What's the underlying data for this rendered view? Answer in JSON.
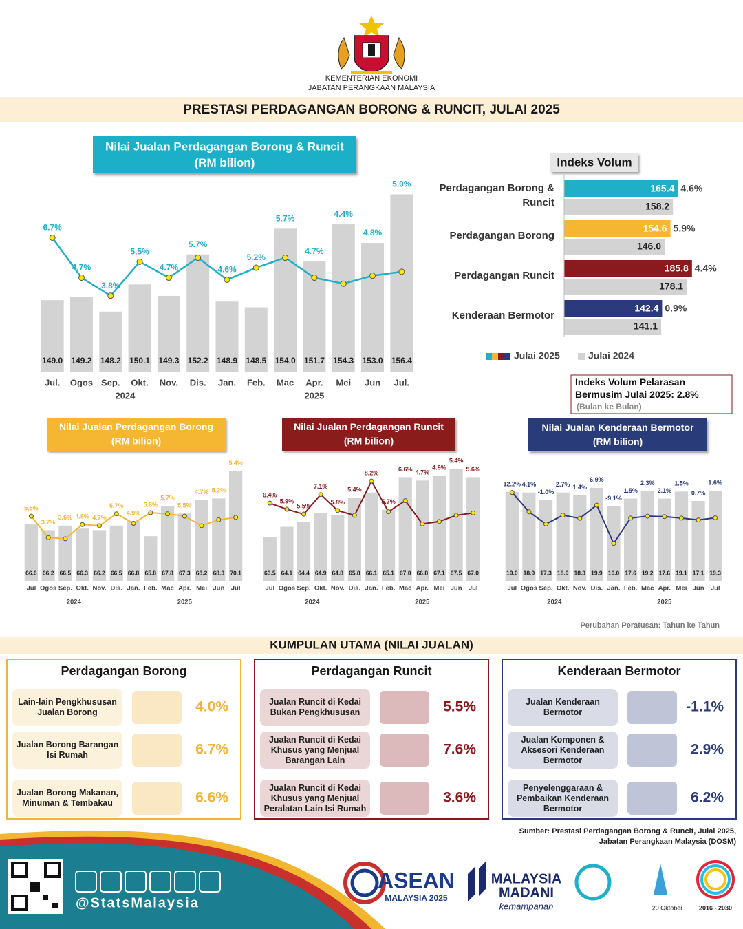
{
  "header": {
    "ministry": "KEMENTERIAN EKONOMI",
    "department": "JABATAN PERANGKAAN MALAYSIA",
    "title": "PRESTASI PERDAGANGAN BORONG & RUNCIT, JULAI 2025"
  },
  "chart_data": [
    {
      "type": "combo",
      "title": "Nilai Jualan Perdagangan Borong & Runcit",
      "subtitle": "(RM bilion)",
      "categories": [
        "Jul.",
        "Ogos",
        "Sep.",
        "Okt.",
        "Nov.",
        "Dis.",
        "Jan.",
        "Feb.",
        "Mac",
        "Apr.",
        "Mei",
        "Jun",
        "Jul."
      ],
      "x_groups": [
        "2024",
        "2025"
      ],
      "series": [
        {
          "type": "bar",
          "color": "#d3d3d3",
          "values": [
            149.0,
            149.2,
            148.2,
            150.1,
            149.3,
            152.2,
            148.9,
            148.5,
            154.0,
            151.7,
            154.3,
            153.0,
            156.4
          ],
          "value_labels": [
            "149.0",
            "149.2",
            "148.2",
            "150.1",
            "149.3",
            "152.2",
            "148.9",
            "148.5",
            "154.0",
            "151.7",
            "154.3",
            "153.0",
            "156.4"
          ]
        },
        {
          "type": "line",
          "axis": "y2",
          "color": "#1fb0c8",
          "values": [
            6.7,
            4.7,
            3.8,
            5.5,
            4.7,
            5.7,
            4.6,
            5.2,
            5.7,
            4.7,
            4.4,
            4.8,
            5.0
          ],
          "value_labels": [
            "6.7%",
            "4.7%",
            "3.8%",
            "5.5%",
            "4.7%",
            "5.7%",
            "4.6%",
            "5.2%",
            "5.7%",
            "4.7%",
            "4.4%",
            "4.8%",
            "5.0%"
          ]
        }
      ],
      "ylim": [
        144,
        157
      ],
      "y2lim": [
        0,
        9.3
      ]
    },
    {
      "type": "hbar",
      "title": "Indeks Volum",
      "categories": [
        "Perdagangan Borong & Runcit",
        "Perdagangan Borong",
        "Perdagangan Runcit",
        "Kenderaan Bermotor"
      ],
      "series": [
        {
          "name": "Julai 2025",
          "colors": [
            "#1fb0c8",
            "#f5b731",
            "#8b1a1f",
            "#2b3a7a"
          ],
          "values": [
            165.4,
            154.6,
            185.8,
            142.4
          ]
        },
        {
          "name": "Julai 2024",
          "color": "#d3d3d3",
          "values": [
            158.2,
            146.0,
            178.1,
            141.1
          ],
          "value_labels": [
            "158.2",
            "146.0",
            "178.1",
            "141.1"
          ]
        }
      ],
      "changes": [
        4.6,
        5.9,
        4.4,
        0.9
      ],
      "change_labels": [
        "4.6%",
        "5.9%",
        "4.4%",
        "0.9%"
      ],
      "xlim": [
        0,
        200
      ],
      "note": "Indeks Volum Pelarasan Bermusim Julai 2025: 2.8%",
      "note_detail": "(Bulan ke Bulan)"
    },
    {
      "type": "combo",
      "title": "Nilai Jualan Perdagangan Borong",
      "subtitle": "(RM bilion)",
      "categories": [
        "Jul",
        "Ogos",
        "Sep.",
        "Okt.",
        "Nov.",
        "Dis.",
        "Jan.",
        "Feb.",
        "Mac",
        "Apr.",
        "Mei",
        "Jun",
        "Jul"
      ],
      "x_groups": [
        "2024",
        "2025"
      ],
      "series": [
        {
          "type": "bar",
          "color": "#d3d3d3",
          "values": [
            66.6,
            66.2,
            66.5,
            66.3,
            66.2,
            66.5,
            66.8,
            65.8,
            67.8,
            67.3,
            68.2,
            68.3,
            70.1
          ],
          "value_labels": [
            "66.6",
            "66.2",
            "66.5",
            "66.3",
            "66.2",
            "66.5",
            "66.8",
            "65.8",
            "67.8",
            "67.3",
            "68.2",
            "68.3",
            "70.1"
          ]
        },
        {
          "type": "line",
          "axis": "y2",
          "color": "#f5b731",
          "values": [
            5.5,
            3.7,
            3.6,
            4.8,
            4.7,
            5.7,
            4.9,
            5.8,
            5.7,
            5.5,
            4.7,
            5.2,
            5.4
          ],
          "value_labels": [
            "5.5%",
            "3.7%",
            "3.6%",
            "4.8%",
            "4.7%",
            "5.7%",
            "4.9%",
            "5.8%",
            "5.7%",
            "5.5%",
            "4.7%",
            "5.2%",
            "5.4%"
          ]
        }
      ],
      "ylim": [
        62.8,
        70.5
      ],
      "y2lim": [
        0,
        9.8
      ]
    },
    {
      "type": "combo",
      "title": "Nilai Jualan Perdagangan Runcit",
      "subtitle": "(RM bilion)",
      "categories": [
        "Jul",
        "Ogos",
        "Sep.",
        "Okt.",
        "Nov.",
        "Dis.",
        "Jan.",
        "Feb.",
        "Mac",
        "Apr.",
        "Mei",
        "Jun",
        "Jul"
      ],
      "x_groups": [
        "2024",
        "2025"
      ],
      "series": [
        {
          "type": "bar",
          "color": "#d3d3d3",
          "values": [
            63.5,
            64.1,
            64.4,
            64.9,
            64.8,
            65.8,
            66.1,
            65.1,
            67.0,
            66.8,
            67.1,
            67.5,
            67.0
          ],
          "value_labels": [
            "63.5",
            "64.1",
            "64.4",
            "64.9",
            "64.8",
            "65.8",
            "66.1",
            "65.1",
            "67.0",
            "66.8",
            "67.1",
            "67.5",
            "67.0"
          ]
        },
        {
          "type": "line",
          "axis": "y2",
          "color": "#8b1a1f",
          "values": [
            6.4,
            5.9,
            5.5,
            7.1,
            5.8,
            5.4,
            8.2,
            5.7,
            6.6,
            4.7,
            4.9,
            5.4,
            5.6
          ],
          "value_labels": [
            "6.4%",
            "5.9%",
            "5.5%",
            "7.1%",
            "5.8%",
            "5.4%",
            "8.2%",
            "5.7%",
            "6.6%",
            "4.7%",
            "4.9%",
            "5.4%",
            "5.6%"
          ]
        }
      ],
      "ylim": [
        60.9,
        67.7
      ],
      "y2lim": [
        0,
        9.5
      ]
    },
    {
      "type": "combo",
      "title": "Nilai Jualan Kenderaan Bermotor",
      "subtitle": "(RM bilion)",
      "categories": [
        "Jul",
        "Ogos",
        "Sep.",
        "Okt.",
        "Nov.",
        "Dis.",
        "Jan.",
        "Feb.",
        "Mac",
        "Apr.",
        "Mei",
        "Jun",
        "Jul"
      ],
      "x_groups": [
        "2024",
        "2025"
      ],
      "series": [
        {
          "type": "bar",
          "color": "#d3d3d3",
          "values": [
            19.0,
            18.9,
            17.3,
            18.9,
            18.3,
            19.9,
            16.0,
            17.6,
            19.2,
            17.6,
            19.1,
            17.1,
            19.3
          ],
          "value_labels": [
            "19.0",
            "18.9",
            "17.3",
            "18.9",
            "18.3",
            "19.9",
            "16.0",
            "17.6",
            "19.2",
            "17.6",
            "19.1",
            "17.1",
            "19.3"
          ]
        },
        {
          "type": "line",
          "axis": "y2",
          "color": "#2b3a7a",
          "values": [
            12.2,
            4.1,
            -1.0,
            2.7,
            1.4,
            6.9,
            -9.1,
            1.5,
            2.3,
            2.1,
            1.5,
            0.7,
            1.6
          ],
          "value_labels": [
            "12.2%",
            "4.1%",
            "-1.0%",
            "2.7%",
            "1.4%",
            "6.9%",
            "-9.1%",
            "1.5%",
            "2.3%",
            "2.1%",
            "1.5%",
            "0.7%",
            "1.6%"
          ]
        }
      ],
      "ylim": [
        0,
        24.7
      ],
      "y2lim": [
        -25,
        23.6
      ]
    }
  ],
  "note": "Perubahan Peratusan: Tahun ke Tahun",
  "groups_title": "KUMPULAN UTAMA (NILAI JUALAN)",
  "groups": [
    {
      "title": "Perdagangan Borong",
      "color": "#f0b43a",
      "items": [
        {
          "label": "Lain-lain Pengkhususan Jualan Borong",
          "value": "4.0%"
        },
        {
          "label": "Jualan Borong Barangan Isi Rumah",
          "value": "6.7%"
        },
        {
          "label": "Jualan Borong Makanan, Minuman & Tembakau",
          "value": "6.6%"
        }
      ]
    },
    {
      "title": "Perdagangan Runcit",
      "color": "#8b1a1f",
      "items": [
        {
          "label": "Jualan Runcit di Kedai Bukan Pengkhususan",
          "value": "5.5%"
        },
        {
          "label": "Jualan Runcit di Kedai Khusus yang Menjual Barangan Lain",
          "value": "7.6%"
        },
        {
          "label": "Jualan Runcit di Kedai Khusus yang Menjual Peralatan Lain Isi Rumah",
          "value": "3.6%"
        }
      ]
    },
    {
      "title": "Kenderaan Bermotor",
      "color": "#2b3a7a",
      "items": [
        {
          "label": "Jualan Kenderaan Bermotor",
          "value": "-1.1%"
        },
        {
          "label": "Jualan Komponen & Aksesori Kenderaan Bermotor",
          "value": "2.9%"
        },
        {
          "label": "Penyelenggaraan & Pembaikan Kenderaan Bermotor",
          "value": "6.2%"
        }
      ]
    }
  ],
  "source": [
    "Sumber: Prestasi Perdagangan Borong & Runcit, Julai 2025,",
    "Jabatan Perangkaan Malaysia (DOSM)"
  ],
  "footer": {
    "handle": "@StatsMalaysia",
    "asean": "ASEAN",
    "asean_sub": "MALAYSIA 2025",
    "madani": "MALAYSIA",
    "madani_sub": "MADANI",
    "madani_tag": "kemampanan",
    "odin_date": "20 Oktober",
    "sdg_years": "2016 - 2030"
  }
}
